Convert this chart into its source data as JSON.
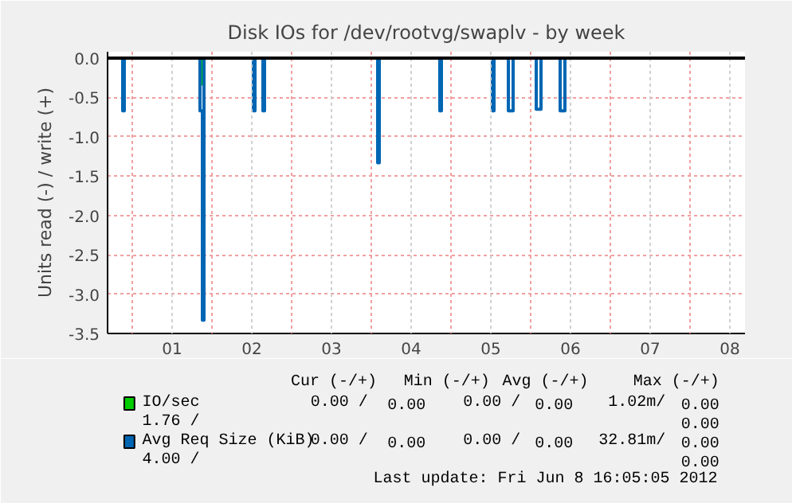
{
  "chart_data": {
    "type": "line",
    "title": "Disk IOs for /dev/rootvg/swaplv - by week",
    "ylabel": "Units read (-) / write (+)",
    "xlim": [
      -0.31,
      7.69
    ],
    "ylim": [
      -3.5,
      0.08
    ],
    "xticks": [
      {
        "value": 0,
        "label": null
      },
      {
        "value": 0.5,
        "label": "01"
      },
      {
        "value": 1,
        "label": null
      },
      {
        "value": 1.5,
        "label": "02"
      },
      {
        "value": 2,
        "label": null
      },
      {
        "value": 2.5,
        "label": "03"
      },
      {
        "value": 3,
        "label": null
      },
      {
        "value": 3.5,
        "label": "04"
      },
      {
        "value": 4,
        "label": null
      },
      {
        "value": 4.5,
        "label": "05"
      },
      {
        "value": 5,
        "label": null
      },
      {
        "value": 5.5,
        "label": "06"
      },
      {
        "value": 6,
        "label": null
      },
      {
        "value": 6.5,
        "label": "07"
      },
      {
        "value": 7,
        "label": null
      },
      {
        "value": 7.5,
        "label": "08"
      }
    ],
    "yticks": [
      {
        "value": 0,
        "label": "0.0"
      },
      {
        "value": -0.5,
        "label": "-0.5"
      },
      {
        "value": -1,
        "label": "-1.0"
      },
      {
        "value": -1.5,
        "label": "-1.5"
      },
      {
        "value": -2,
        "label": "-2.0"
      },
      {
        "value": -2.5,
        "label": "-2.5"
      },
      {
        "value": -3,
        "label": "-3.0"
      },
      {
        "value": -3.5,
        "label": "-3.5"
      }
    ],
    "grid": true,
    "legend": "bottom",
    "ref_lines": [
      {
        "axis": "y",
        "value": 0,
        "color": "#000000"
      }
    ],
    "series": [
      {
        "name": "IO/sec",
        "color": "#00cc00",
        "x": [
          0.86,
          0.86,
          0.88,
          0.88
        ],
        "values": [
          0,
          -0.33,
          -0.33,
          0
        ]
      },
      {
        "name": "Avg Req Size (KiB)",
        "color": "#0066b3",
        "x": [
          -0.12,
          -0.12,
          -0.1,
          -0.1,
          0.85,
          0.85,
          0.88,
          0.88,
          0.9,
          0.9,
          1.52,
          1.52,
          1.54,
          1.54,
          1.64,
          1.64,
          1.66,
          1.66,
          3.08,
          3.08,
          3.1,
          3.1,
          3.86,
          3.86,
          3.88,
          3.88,
          4.52,
          4.52,
          4.54,
          4.54,
          4.72,
          4.72,
          4.78,
          4.78,
          5.07,
          5.07,
          5.13,
          5.13,
          5.37,
          5.37,
          5.43,
          5.43
        ],
        "values": [
          0,
          -0.67,
          -0.67,
          0,
          0,
          -0.67,
          -0.67,
          -3.33,
          -3.33,
          0,
          0,
          -0.67,
          -0.67,
          0,
          0,
          -0.67,
          -0.67,
          0,
          0,
          -1.33,
          -1.33,
          0,
          0,
          -0.67,
          -0.67,
          0,
          0,
          -0.67,
          -0.67,
          0,
          0,
          -0.67,
          -0.67,
          0,
          0,
          -0.65,
          -0.65,
          0,
          0,
          -0.67,
          -0.67,
          0
        ]
      }
    ],
    "annotations": [
      "Cur (-/+)",
      "Min (-/+)",
      "Avg (-/+)",
      "Max (-/+)",
      "0.00 /",
      "0.00",
      "0.00 /",
      "0.00",
      "1.02m/",
      "0.00",
      "1.76 /",
      "0.00",
      "0.00 /",
      "0.00",
      "0.00 /",
      "0.00",
      "32.81m/",
      "0.00",
      "4.00 /",
      "0.00",
      "Last update: Fri Jun  8 16:05:05 2012"
    ]
  }
}
